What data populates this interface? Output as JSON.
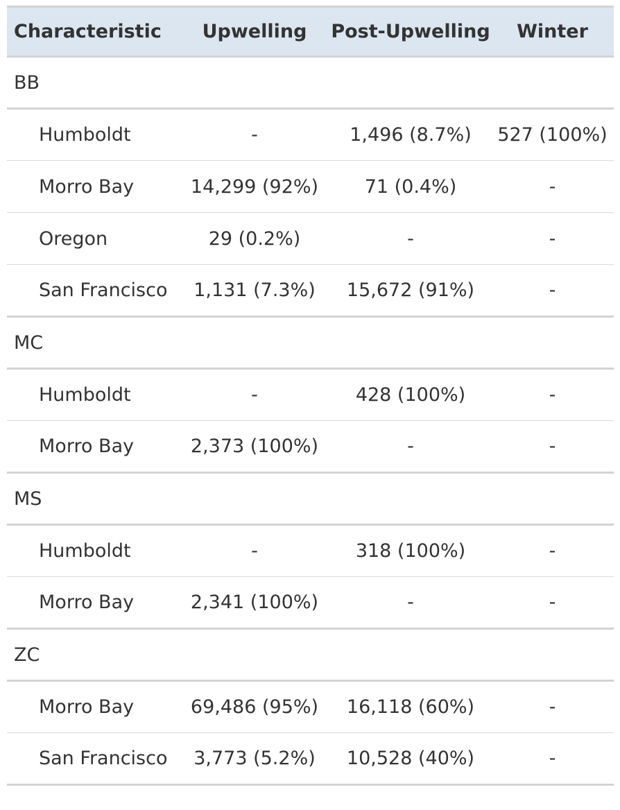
{
  "headers": {
    "characteristic": "Characteristic",
    "upwelling": "Upwelling",
    "post_upwelling": "Post-Upwelling",
    "winter": "Winter"
  },
  "groups": [
    {
      "label": "BB",
      "rows": [
        {
          "name": "Humboldt",
          "upwelling": "-",
          "post_upwelling": "1,496 (8.7%)",
          "winter": "527 (100%)"
        },
        {
          "name": "Morro Bay",
          "upwelling": "14,299 (92%)",
          "post_upwelling": "71 (0.4%)",
          "winter": "-"
        },
        {
          "name": "Oregon",
          "upwelling": "29 (0.2%)",
          "post_upwelling": "-",
          "winter": "-"
        },
        {
          "name": "San Francisco",
          "upwelling": "1,131 (7.3%)",
          "post_upwelling": "15,672 (91%)",
          "winter": "-"
        }
      ]
    },
    {
      "label": "MC",
      "rows": [
        {
          "name": "Humboldt",
          "upwelling": "-",
          "post_upwelling": "428 (100%)",
          "winter": "-"
        },
        {
          "name": "Morro Bay",
          "upwelling": "2,373 (100%)",
          "post_upwelling": "-",
          "winter": "-"
        }
      ]
    },
    {
      "label": "MS",
      "rows": [
        {
          "name": "Humboldt",
          "upwelling": "-",
          "post_upwelling": "318 (100%)",
          "winter": "-"
        },
        {
          "name": "Morro Bay",
          "upwelling": "2,341 (100%)",
          "post_upwelling": "-",
          "winter": "-"
        }
      ]
    },
    {
      "label": "ZC",
      "rows": [
        {
          "name": "Morro Bay",
          "upwelling": "69,486 (95%)",
          "post_upwelling": "16,118 (60%)",
          "winter": "-"
        },
        {
          "name": "San Francisco",
          "upwelling": "3,773 (5.2%)",
          "post_upwelling": "10,528 (40%)",
          "winter": "-"
        }
      ]
    }
  ]
}
